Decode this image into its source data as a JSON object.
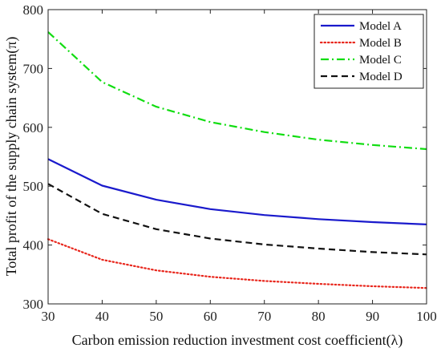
{
  "chart_data": {
    "type": "line",
    "title": "",
    "xlabel": "Carbon emission reduction investment cost coefficient(λ)",
    "ylabel": "Total profit of the supply chain system(π)",
    "x": [
      30,
      40,
      50,
      60,
      70,
      80,
      90,
      100
    ],
    "xlim": [
      30,
      100
    ],
    "ylim": [
      300,
      800
    ],
    "xticks": [
      "30",
      "40",
      "50",
      "60",
      "70",
      "80",
      "90",
      "100"
    ],
    "yticks": [
      "300",
      "400",
      "500",
      "600",
      "700",
      "800"
    ],
    "grid": false,
    "legend_position": "top-right",
    "series": [
      {
        "name": "Model A",
        "color": "#1a1acc",
        "style": "solid",
        "values": [
          546,
          501,
          477,
          461,
          451,
          444,
          439,
          435
        ]
      },
      {
        "name": "Model B",
        "color": "#e8261c",
        "style": "dotted",
        "values": [
          410,
          375,
          357,
          346,
          339,
          334,
          330,
          327
        ]
      },
      {
        "name": "Model C",
        "color": "#11dd11",
        "style": "dashdot",
        "values": [
          762,
          677,
          635,
          609,
          592,
          579,
          570,
          563
        ]
      },
      {
        "name": "Model D",
        "color": "#111111",
        "style": "dashed",
        "values": [
          504,
          453,
          427,
          411,
          401,
          394,
          388,
          384
        ]
      }
    ]
  }
}
